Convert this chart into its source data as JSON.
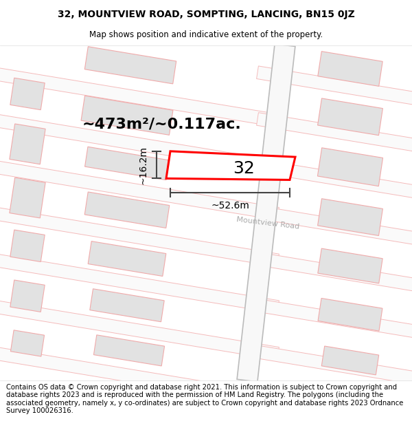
{
  "title_line1": "32, MOUNTVIEW ROAD, SOMPTING, LANCING, BN15 0JZ",
  "title_line2": "Map shows position and indicative extent of the property.",
  "area_text": "~473m²/~0.117ac.",
  "width_label": "~52.6m",
  "height_label": "~16.2m",
  "number_label": "32",
  "road_label": "Mountview Road",
  "footer_text": "Contains OS data © Crown copyright and database right 2021. This information is subject to Crown copyright and database rights 2023 and is reproduced with the permission of HM Land Registry. The polygons (including the associated geometry, namely x, y co-ordinates) are subject to Crown copyright and database rights 2023 Ordnance Survey 100026316.",
  "bg_color": "#ffffff",
  "map_bg": "#f7f7f7",
  "plot_outline": "#ff0000",
  "road_fill": "#f0f0f0",
  "road_edge": "#ccbbbb",
  "building_fill": "#e2e2e2",
  "building_edge": "#f0aaaa",
  "street_fill": "#fafafa",
  "street_edge": "#f5bbbb",
  "dim_color": "#444444",
  "title_fontsize": 10,
  "subtitle_fontsize": 8.5,
  "footer_fontsize": 7.2,
  "area_fontsize": 16,
  "num_fontsize": 18,
  "dim_fontsize": 10,
  "road_label_fontsize": 8
}
